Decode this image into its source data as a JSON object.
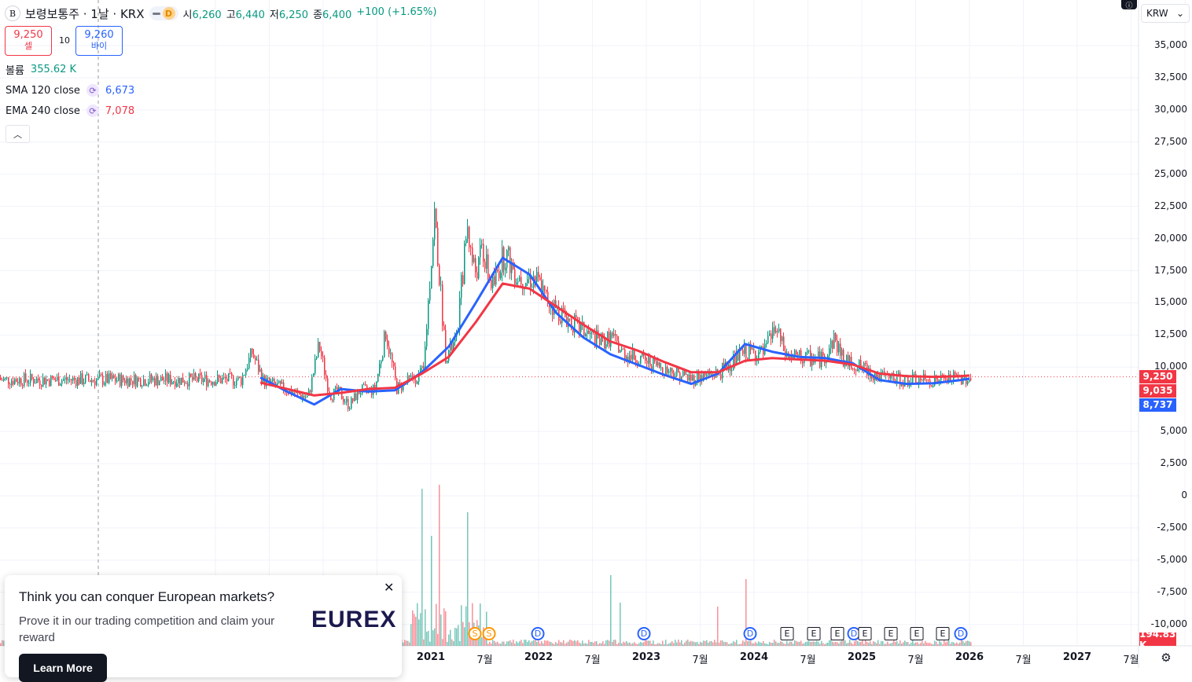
{
  "header": {
    "symbol_logo": "B",
    "title": "보령보통주 · 1날 · KRX",
    "delay_badge": "D",
    "ohlc": [
      {
        "label": "시",
        "value": "6,260"
      },
      {
        "label": "고",
        "value": "6,440"
      },
      {
        "label": "저",
        "value": "6,250"
      },
      {
        "label": "종",
        "value": "6,400"
      }
    ],
    "change": "+100 (+1.65%)"
  },
  "trade": {
    "sell_price": "9,250",
    "sell_label": "셀",
    "spread": "10",
    "buy_price": "9,260",
    "buy_label": "바이"
  },
  "indicators": [
    {
      "name": "볼륨",
      "value": "355.62 K",
      "color": "#089981"
    },
    {
      "name": "SMA 120 close",
      "value": "6,673",
      "color": "#2962ff"
    },
    {
      "name": "EMA 240 close",
      "value": "7,078",
      "color": "#f23645"
    }
  ],
  "collapse_icon": "chevron-up-icon",
  "currency": "KRW",
  "price_axis": {
    "ticks": [
      "35,000",
      "32,500",
      "30,000",
      "27,500",
      "25,000",
      "22,500",
      "20,000",
      "17,500",
      "15,000",
      "12,500",
      "10,000",
      "5,000",
      "2,500",
      "0",
      "-2,500",
      "-5,000",
      "-7,500",
      "-10,000"
    ],
    "tick_values": [
      35000,
      32500,
      30000,
      27500,
      25000,
      22500,
      20000,
      17500,
      15000,
      12500,
      10000,
      5000,
      2500,
      0,
      -2500,
      -5000,
      -7500,
      -10000
    ]
  },
  "price_tags": [
    {
      "label": "9,250",
      "value": 9250,
      "color": "#f23645"
    },
    {
      "label": "9,035",
      "value": 9035,
      "color": "#f23645"
    },
    {
      "label": "8,737",
      "value": 8737,
      "color": "#2962ff"
    }
  ],
  "volume_tag": {
    "label": "194.83 K",
    "color": "#f23645"
  },
  "time_axis": [
    "2021",
    "7월",
    "2022",
    "7월",
    "2023",
    "7월",
    "2024",
    "7월",
    "2025",
    "7월",
    "2026",
    "7월",
    "2027",
    "7월"
  ],
  "events": [
    {
      "type": "S",
      "label": "S"
    },
    {
      "type": "S",
      "label": "S"
    },
    {
      "type": "D",
      "label": "D"
    },
    {
      "type": "D",
      "label": "D"
    },
    {
      "type": "D",
      "label": "D"
    },
    {
      "type": "E",
      "label": "E"
    },
    {
      "type": "E",
      "label": "E"
    },
    {
      "type": "E",
      "label": "E"
    },
    {
      "type": "D",
      "label": "D"
    },
    {
      "type": "E",
      "label": "E"
    },
    {
      "type": "E",
      "label": "E"
    },
    {
      "type": "E",
      "label": "E"
    },
    {
      "type": "E",
      "label": "E"
    },
    {
      "type": "D",
      "label": "D"
    }
  ],
  "ad": {
    "title": "Think you can conquer European markets?",
    "body": "Prove it in our trading competition and claim your reward",
    "logo": "EUREX",
    "button": "Learn More"
  },
  "chart_data": {
    "type": "candlestick",
    "interval": "1 day",
    "price_range": [
      -10000,
      35000
    ],
    "series": [
      {
        "name": "SMA 120 close",
        "color": "#2962ff",
        "x": [
          "2019-06",
          "2019-09",
          "2019-12",
          "2020-03",
          "2020-06",
          "2020-09",
          "2020-12",
          "2021-03",
          "2021-06",
          "2021-09",
          "2021-12",
          "2022-03",
          "2022-06",
          "2022-09",
          "2022-12",
          "2023-03",
          "2023-06",
          "2023-09",
          "2023-12",
          "2024-03",
          "2024-06",
          "2024-09",
          "2024-12",
          "2025-03",
          "2025-06",
          "2025-09",
          "2025-12",
          "2026-01"
        ],
        "values": [
          9200,
          8100,
          7100,
          8300,
          8100,
          8200,
          9600,
          11600,
          15000,
          18500,
          17200,
          14200,
          12300,
          11000,
          10200,
          9400,
          8700,
          9500,
          11800,
          11200,
          10800,
          10700,
          10300,
          9000,
          8700,
          8750,
          9000,
          9100
        ]
      },
      {
        "name": "EMA 240 close",
        "color": "#f23645",
        "x": [
          "2019-06",
          "2019-09",
          "2019-12",
          "2020-03",
          "2020-06",
          "2020-09",
          "2020-12",
          "2021-03",
          "2021-06",
          "2021-09",
          "2021-12",
          "2022-03",
          "2022-06",
          "2022-09",
          "2022-12",
          "2023-03",
          "2023-06",
          "2023-09",
          "2023-12",
          "2024-03",
          "2024-06",
          "2024-09",
          "2024-12",
          "2025-03",
          "2025-06",
          "2025-09",
          "2025-12",
          "2026-01"
        ],
        "values": [
          8800,
          8300,
          7800,
          8000,
          8300,
          8400,
          9500,
          10800,
          13500,
          16500,
          16100,
          14700,
          13300,
          12000,
          11300,
          10400,
          9600,
          9600,
          10500,
          10700,
          10600,
          10500,
          10200,
          9500,
          9300,
          9250,
          9300,
          9350
        ]
      }
    ],
    "close_price": 9250
  }
}
